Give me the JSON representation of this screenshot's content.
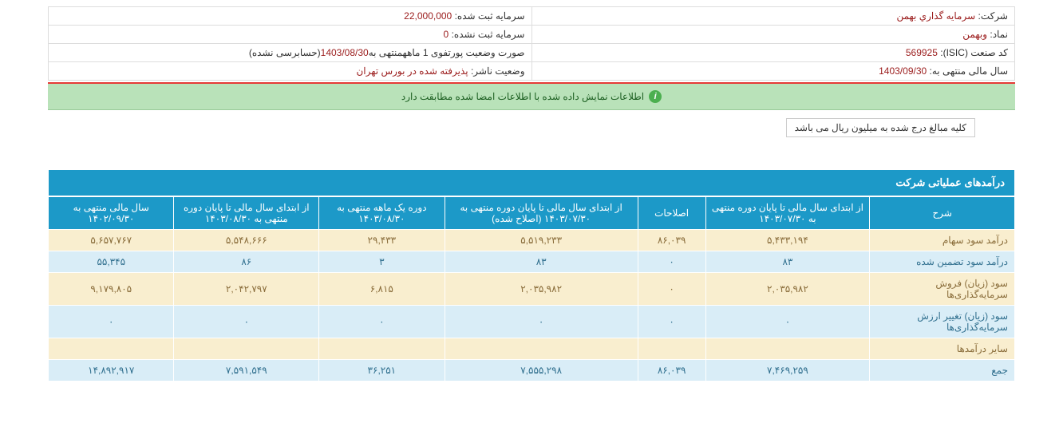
{
  "info": {
    "company_label": "شرکت:",
    "company_value": "سرمايه گذاري بهمن",
    "symbol_label": "نماد:",
    "symbol_value": "وبهمن",
    "industry_label": "کد صنعت (ISIC):",
    "industry_value": "569925",
    "fiscal_label": "سال مالی منتهی به:",
    "fiscal_value": "1403/09/30",
    "capital_reg_label": "سرمایه ثبت شده:",
    "capital_reg_value": "22,000,000",
    "capital_unreg_label": "سرمایه ثبت نشده:",
    "capital_unreg_value": "0",
    "portfolio_label_prefix": "صورت وضعیت پورتفوی 1 ماهه",
    "portfolio_label_mid": "منتهی به",
    "portfolio_date": "1403/08/30",
    "portfolio_suffix": "(حسابرسی نشده)",
    "publisher_label": "وضعیت ناشر:",
    "publisher_value": "پذيرفته شده در بورس تهران"
  },
  "banner": "اطلاعات نمایش داده شده با اطلاعات امضا شده مطابقت دارد",
  "notice": "کلیه مبالغ درج شده به میلیون ریال می باشد",
  "section_title": "درآمدهای عملیاتی شرکت",
  "headers": {
    "desc": "شرح",
    "h1": "از ابتدای سال مالی تا پایان دوره منتهی به ۱۴۰۳/۰۷/۳۰",
    "h2": "اصلاحات",
    "h3": "از ابتدای سال مالی تا پایان دوره منتهی به ۱۴۰۳/۰۷/۳۰ (اصلاح شده)",
    "h4": "دوره یک ماهه منتهی به ۱۴۰۳/۰۸/۳۰",
    "h5": "از ابتدای سال مالی تا پایان دوره منتهی به ۱۴۰۳/۰۸/۳۰",
    "h6": "سال مالی منتهی به ۱۴۰۲/۰۹/۳۰"
  },
  "rows": [
    {
      "desc": "درآمد سود سهام",
      "v1": "۵,۴۳۳,۱۹۴",
      "v2": "۸۶,۰۳۹",
      "v3": "۵,۵۱۹,۲۳۳",
      "v4": "۲۹,۴۳۳",
      "v5": "۵,۵۴۸,۶۶۶",
      "v6": "۵,۶۵۷,۷۶۷"
    },
    {
      "desc": "درآمد سود تضمین شده",
      "v1": "۸۳",
      "v2": "۰",
      "v3": "۸۳",
      "v4": "۳",
      "v5": "۸۶",
      "v6": "۵۵,۳۴۵"
    },
    {
      "desc": "سود (زیان) فروش سرمایه‌گذاری‌ها",
      "v1": "۲,۰۳۵,۹۸۲",
      "v2": "۰",
      "v3": "۲,۰۳۵,۹۸۲",
      "v4": "۶,۸۱۵",
      "v5": "۲,۰۴۲,۷۹۷",
      "v6": "۹,۱۷۹,۸۰۵"
    },
    {
      "desc": "سود (زیان) تغییر ارزش سرمایه‌گذاری‌ها",
      "v1": "۰",
      "v2": "۰",
      "v3": "۰",
      "v4": "۰",
      "v5": "۰",
      "v6": "۰"
    },
    {
      "desc": "سایر درآمدها",
      "v1": "",
      "v2": "",
      "v3": "",
      "v4": "",
      "v5": "",
      "v6": ""
    },
    {
      "desc": "جمع",
      "v1": "۷,۴۶۹,۲۵۹",
      "v2": "۸۶,۰۳۹",
      "v3": "۷,۵۵۵,۲۹۸",
      "v4": "۳۶,۲۵۱",
      "v5": "۷,۵۹۱,۵۴۹",
      "v6": "۱۴,۸۹۲,۹۱۷"
    }
  ],
  "colors": {
    "header_bg": "#1c99c8",
    "row_blue": "#d9edf7",
    "row_yellow": "#f9eecf",
    "banner_bg": "#b9e2b9",
    "red_text": "#9b1c1c"
  }
}
